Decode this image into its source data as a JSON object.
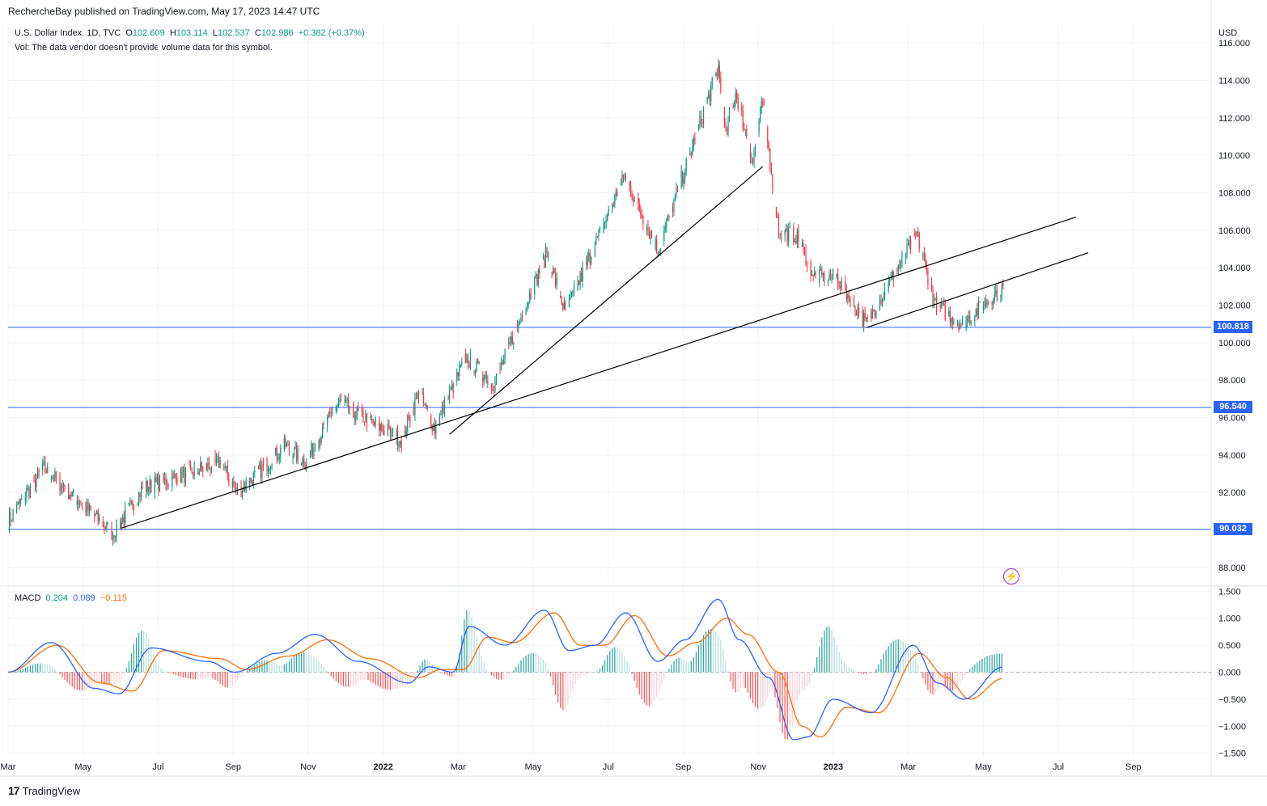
{
  "header": {
    "publisher_line": "RechercheBay published on TradingView.com, May 17, 2023 14:47 UTC"
  },
  "legend": {
    "symbol": "U.S. Dollar Index, 1D, TVC",
    "o_label": "O",
    "o": "102.609",
    "h_label": "H",
    "h": "103.114",
    "l_label": "L",
    "l": "102.537",
    "c_label": "C",
    "c": "102.986",
    "change": "+0.382 (+0.37%)",
    "vol_note": "Vol: The data vendor doesn't provide volume data for this symbol."
  },
  "macd_legend": {
    "label": "MACD",
    "hist": "0.204",
    "macd": "0.089",
    "signal": "−0.115"
  },
  "footer": {
    "brand": "TradingView",
    "logo": "17"
  },
  "price_axis": {
    "currency": "USD"
  },
  "colors": {
    "up": "#089981",
    "down": "#f23645",
    "hline": "#2962ff",
    "macd": "#2962ff",
    "signal": "#ff6d00"
  },
  "chart_data": [
    {
      "type": "candlestick",
      "title": "U.S. Dollar Index, 1D, TVC",
      "yaxis_ticks": [
        "88.000",
        "90.000",
        "92.000",
        "94.000",
        "96.000",
        "98.000",
        "100.000",
        "102.000",
        "104.000",
        "106.000",
        "108.000",
        "110.000",
        "112.000",
        "114.000",
        "116.000"
      ],
      "ylim": [
        87,
        117
      ],
      "xaxis_ticks": [
        "Mar",
        "May",
        "Jul",
        "Sep",
        "Nov",
        "2022",
        "Mar",
        "May",
        "Jul",
        "Sep",
        "Nov",
        "2023",
        "Mar",
        "May",
        "Jul",
        "Sep"
      ],
      "bold_ticks": [
        "2022",
        "2023"
      ],
      "start_date": "2021-03-01",
      "horizontal_levels": [
        {
          "value": 100.818,
          "label": "100.818"
        },
        {
          "value": 96.54,
          "label": "96.540"
        },
        {
          "value": 90.032,
          "label": "90.032"
        }
      ],
      "trendlines": [
        {
          "from": [
            "2021-06-01",
            90.1
          ],
          "to": [
            "2023-07-15",
            106.7
          ]
        },
        {
          "from": [
            "2022-02-22",
            95.1
          ],
          "to": [
            "2022-11-03",
            109.4
          ]
        },
        {
          "from": [
            "2023-01-26",
            100.8
          ],
          "to": [
            "2023-07-25",
            104.8
          ]
        }
      ],
      "price_path": [
        [
          "2021-03-01",
          90.5
        ],
        [
          "2021-03-30",
          93.3
        ],
        [
          "2021-05-25",
          89.8
        ],
        [
          "2021-06-18",
          92.2
        ],
        [
          "2021-08-20",
          93.6
        ],
        [
          "2021-09-03",
          92.0
        ],
        [
          "2021-10-12",
          94.5
        ],
        [
          "2021-10-28",
          93.6
        ],
        [
          "2021-11-24",
          96.8
        ],
        [
          "2022-01-14",
          94.8
        ],
        [
          "2022-01-28",
          97.3
        ],
        [
          "2022-02-10",
          95.4
        ],
        [
          "2022-03-07",
          99.2
        ],
        [
          "2022-03-30",
          97.8
        ],
        [
          "2022-05-12",
          104.8
        ],
        [
          "2022-05-27",
          101.6
        ],
        [
          "2022-07-14",
          108.9
        ],
        [
          "2022-08-10",
          104.9
        ],
        [
          "2022-09-28",
          114.7
        ],
        [
          "2022-10-04",
          111.0
        ],
        [
          "2022-10-12",
          113.4
        ],
        [
          "2022-10-26",
          109.7
        ],
        [
          "2022-11-03",
          112.9
        ],
        [
          "2022-11-16",
          106.0
        ],
        [
          "2022-11-30",
          105.7
        ],
        [
          "2022-12-15",
          103.5
        ],
        [
          "2023-01-02",
          103.5
        ],
        [
          "2023-01-26",
          101.0
        ],
        [
          "2023-03-08",
          105.8
        ],
        [
          "2023-03-23",
          102.0
        ],
        [
          "2023-04-14",
          101.0
        ],
        [
          "2023-05-17",
          103.0
        ]
      ]
    },
    {
      "type": "line",
      "title": "MACD",
      "yaxis_ticks": [
        "1.500",
        "1.000",
        "0.500",
        "0.000",
        "−0.500",
        "−1.000",
        "−1.500"
      ],
      "ylim": [
        -1.55,
        1.55
      ],
      "series": [
        {
          "name": "MACD",
          "x": [
            "2021-03-01",
            "2021-04-05",
            "2021-05-10",
            "2021-05-30",
            "2021-06-25",
            "2021-08-10",
            "2021-09-01",
            "2021-10-05",
            "2021-11-05",
            "2021-12-10",
            "2022-01-20",
            "2022-02-05",
            "2022-02-25",
            "2022-03-10",
            "2022-04-08",
            "2022-05-10",
            "2022-05-30",
            "2022-06-20",
            "2022-07-15",
            "2022-08-10",
            "2022-09-01",
            "2022-09-28",
            "2022-10-15",
            "2022-11-08",
            "2022-11-28",
            "2022-12-10",
            "2022-12-30",
            "2023-01-30",
            "2023-03-05",
            "2023-03-25",
            "2023-04-15",
            "2023-05-17"
          ],
          "y": [
            0.0,
            0.55,
            -0.3,
            -0.4,
            0.45,
            0.2,
            0.0,
            0.35,
            0.7,
            0.2,
            -0.2,
            0.1,
            0.0,
            0.85,
            0.5,
            1.15,
            0.4,
            0.5,
            1.1,
            0.2,
            0.6,
            1.35,
            0.6,
            -0.1,
            -1.25,
            -1.2,
            -0.5,
            -0.75,
            0.5,
            -0.2,
            -0.5,
            0.1
          ]
        },
        {
          "name": "Signal",
          "x": [
            "2021-03-01",
            "2021-04-10",
            "2021-05-15",
            "2021-06-10",
            "2021-07-05",
            "2021-08-20",
            "2021-09-10",
            "2021-10-15",
            "2021-11-15",
            "2021-12-20",
            "2022-01-28",
            "2022-02-15",
            "2022-03-05",
            "2022-03-25",
            "2022-04-15",
            "2022-05-18",
            "2022-06-08",
            "2022-06-28",
            "2022-07-22",
            "2022-08-18",
            "2022-09-10",
            "2022-10-05",
            "2022-10-22",
            "2022-11-16",
            "2022-12-05",
            "2022-12-20",
            "2023-01-10",
            "2023-02-05",
            "2023-03-10",
            "2023-04-01",
            "2023-04-20",
            "2023-05-17"
          ],
          "y": [
            0.0,
            0.5,
            -0.2,
            -0.35,
            0.4,
            0.25,
            0.05,
            0.3,
            0.6,
            0.25,
            -0.1,
            0.05,
            0.05,
            0.65,
            0.55,
            1.1,
            0.5,
            0.5,
            1.05,
            0.3,
            0.55,
            1.0,
            0.7,
            0.0,
            -1.0,
            -1.2,
            -0.65,
            -0.75,
            0.35,
            -0.1,
            -0.5,
            -0.115
          ]
        }
      ]
    }
  ]
}
